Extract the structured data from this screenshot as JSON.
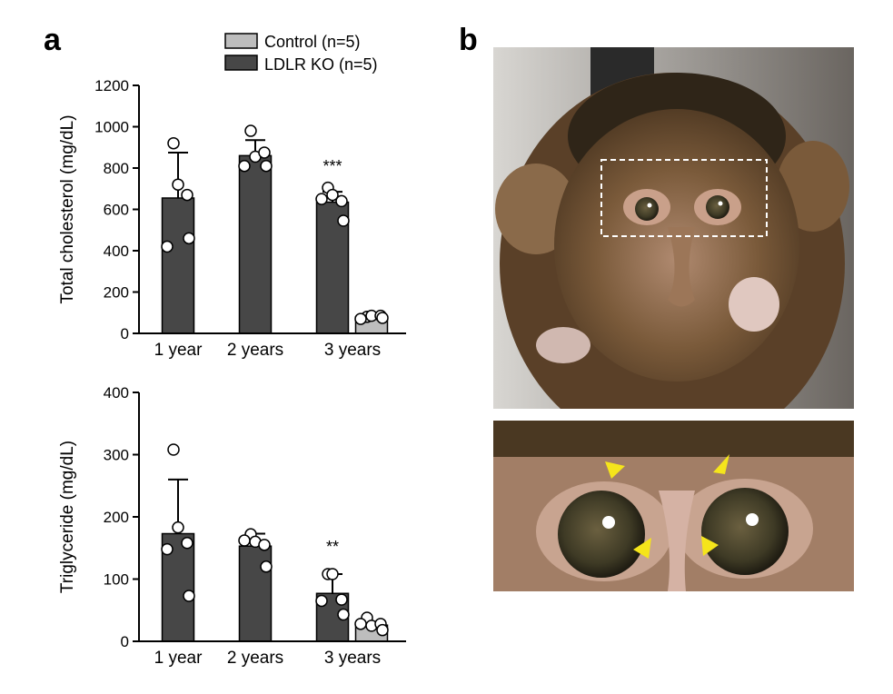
{
  "panel_labels": {
    "a": "a",
    "b": "b"
  },
  "legend": [
    {
      "label": "Control (n=5)",
      "color": "#bdbdbd"
    },
    {
      "label": "LDLR KO (n=5)",
      "color": "#474747"
    }
  ],
  "chart_data": [
    {
      "type": "bar",
      "ylabel": "Total cholesterol (mg/dL)",
      "ylim": [
        0,
        1200
      ],
      "yticks": [
        "0",
        "200",
        "400",
        "600",
        "800",
        "1000",
        "1200"
      ],
      "categories": [
        "1 year",
        "2 years",
        "3 years"
      ],
      "series": [
        {
          "name": "LDLR KO (n=5)",
          "values": [
            655,
            860,
            635
          ],
          "sd_top": [
            875,
            935,
            685
          ],
          "points": [
            [
              920,
              720,
              670,
              420,
              460
            ],
            [
              980,
              855,
              875,
              810,
              810
            ],
            [
              705,
              670,
              640,
              650,
              545
            ]
          ]
        },
        {
          "name": "Control (n=5)",
          "values": [
            null,
            null,
            80
          ],
          "sd_top": [
            null,
            null,
            90
          ],
          "points": [
            null,
            null,
            [
              80,
              85,
              85,
              70,
              75
            ]
          ]
        }
      ],
      "annotations": [
        {
          "category": "3 years",
          "text": "***"
        }
      ]
    },
    {
      "type": "bar",
      "ylabel": "Triglyceride (mg/dL)",
      "ylim": [
        0,
        400
      ],
      "yticks": [
        "0",
        "100",
        "200",
        "300",
        "400"
      ],
      "categories": [
        "1 year",
        "2 years",
        "3 years"
      ],
      "series": [
        {
          "name": "LDLR KO (n=5)",
          "values": [
            173,
            153,
            77
          ],
          "sd_top": [
            260,
            173,
            108
          ],
          "points": [
            [
              308,
              183,
              158,
              148,
              73
            ],
            [
              172,
              160,
              155,
              162,
              120
            ],
            [
              108,
              108,
              67,
              65,
              43
            ]
          ]
        },
        {
          "name": "Control (n=5)",
          "values": [
            null,
            null,
            26
          ],
          "sd_top": [
            null,
            null,
            30
          ],
          "points": [
            null,
            null,
            [
              38,
              25,
              28,
              28,
              18
            ]
          ]
        }
      ],
      "annotations": [
        {
          "category": "3 years",
          "text": "**"
        }
      ]
    }
  ],
  "photo": {
    "marker_color": "#f5e51b",
    "box_style": "dashed white"
  }
}
